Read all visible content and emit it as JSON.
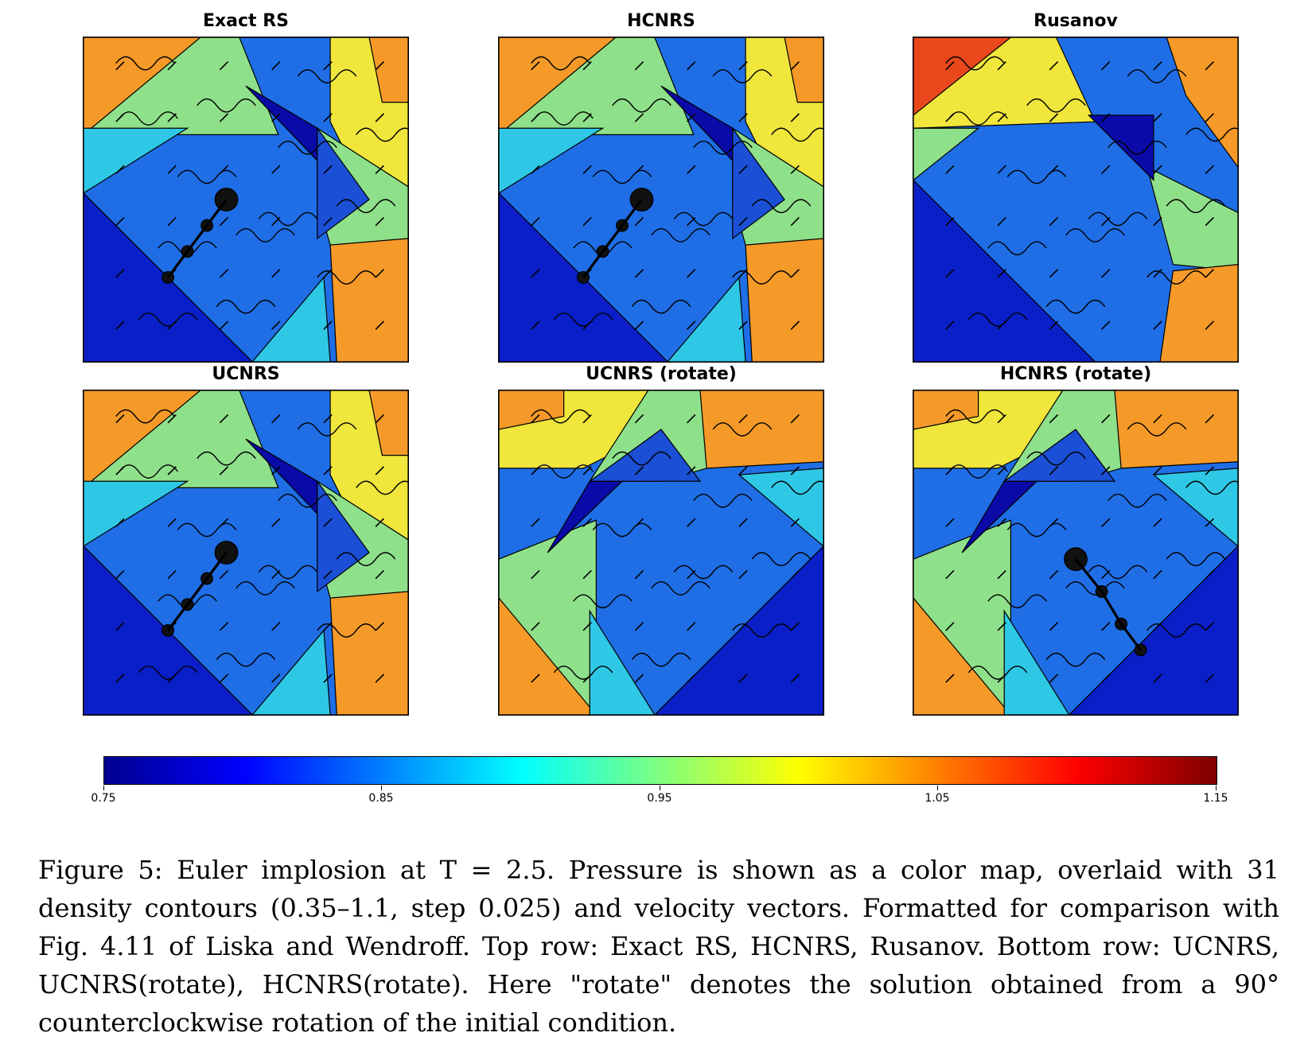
{
  "panels": [
    {
      "title": "Exact RS",
      "variant": "standard",
      "jet": true
    },
    {
      "title": "HCNRS",
      "variant": "standard",
      "jet": true
    },
    {
      "title": "Rusanov",
      "variant": "rusanov",
      "jet": false
    },
    {
      "title": "UCNRS",
      "variant": "standard",
      "jet": true
    },
    {
      "title": "UCNRS (rotate)",
      "variant": "rotated_ccw",
      "jet": false
    },
    {
      "title": "HCNRS (rotate)",
      "variant": "rotated_ccw",
      "jet": true
    }
  ],
  "colorbar": {
    "min": 0.75,
    "max": 1.15,
    "tick_labels": [
      "0.75",
      "0.85",
      "0.95",
      "1.05",
      "1.15"
    ],
    "colormap": "jet"
  },
  "caption": "Figure 5:   Euler implosion at T = 2.5. Pressure is shown as a color map, overlaid with 31 density contours (0.35–1.1, step 0.025) and velocity vectors. Formatted for comparison with Fig. 4.11 of Liska and Wendroff. Top row: Exact RS, HCNRS, Rusanov. Bottom row: UCNRS, UCNRS(rotate), HCNRS(rotate). Here \"rotate\" denotes the solution obtained from a 90° counterclockwise rotation of the initial condition.",
  "colors": {
    "deep_blue": "#0a1fc8",
    "blue": "#1f6ee6",
    "cyan": "#2ec8e6",
    "green": "#8fe08a",
    "yellow": "#f0e63c",
    "orange": "#f59a28",
    "red": "#e8481c",
    "dark_blue": "#0a0aa8"
  }
}
